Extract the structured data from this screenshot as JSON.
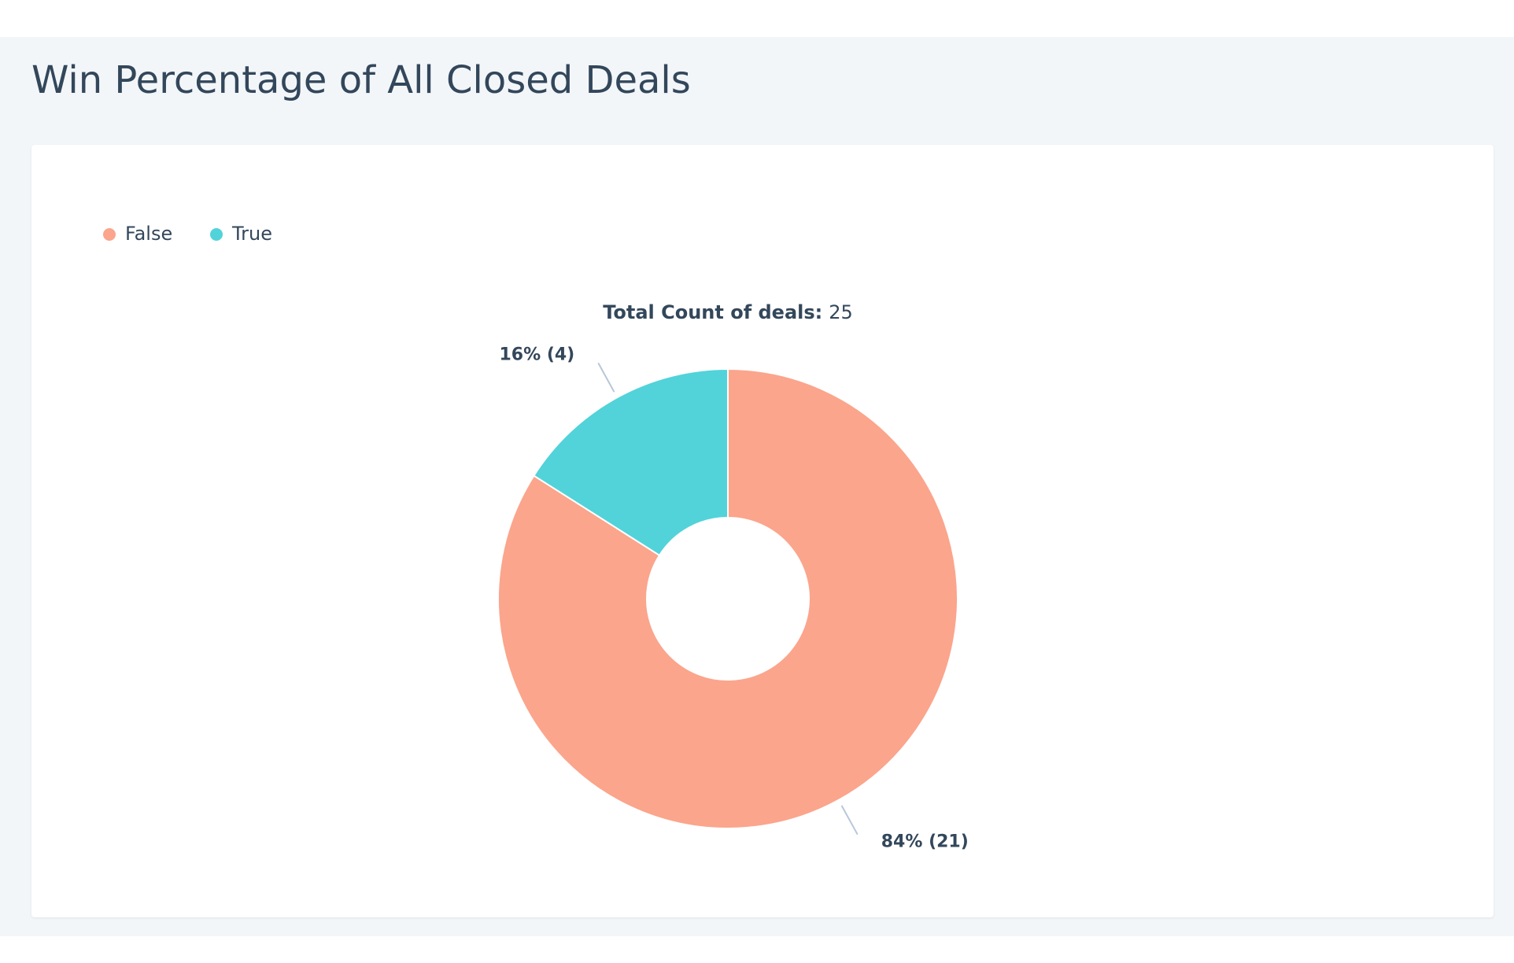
{
  "chart_data": {
    "type": "donut",
    "title": "Win Percentage of All Closed Deals",
    "total_label": "Total Count of deals:",
    "total": 25,
    "categories": [
      "False",
      "True"
    ],
    "values": [
      21,
      4
    ],
    "value_labels": [
      "84% (21)",
      "16% (4)"
    ],
    "colors": [
      "#fba58c",
      "#51d3d9"
    ]
  }
}
